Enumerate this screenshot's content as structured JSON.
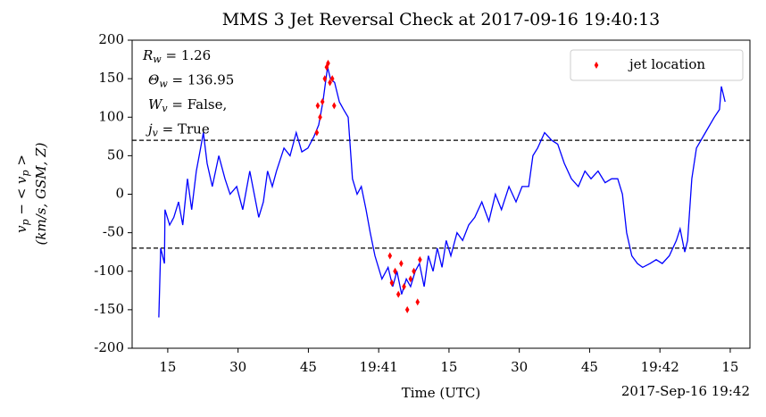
{
  "chart_data": {
    "type": "line",
    "title": "MMS 3 Jet Reversal Check at 2017-09-16 19:40:13",
    "xlabel": "Time (UTC)",
    "x_offset_label": "2017-Sep-16 19:42",
    "ylabel": {
      "line1": [
        {
          "t": "v",
          "sub": "p"
        },
        {
          "t": " − < v",
          "sub": "p"
        },
        {
          "t": " >"
        }
      ],
      "line2": "(km/s, GSM, Z)"
    },
    "annotations": [
      {
        "t": "R",
        "sub": "w",
        "rest": " = 1.26"
      },
      {
        "t": "Θ",
        "sub": "w",
        "rest": " = 136.95"
      },
      {
        "t": "W",
        "sub": "v",
        "rest": " = False,"
      },
      {
        "t": "j",
        "sub": "v",
        "rest": " = True"
      }
    ],
    "xlim": [
      7.4,
      139.2
    ],
    "ylim": [
      -200,
      200
    ],
    "xticks": [
      {
        "value": 15,
        "label": "15"
      },
      {
        "value": 30,
        "label": "30"
      },
      {
        "value": 45,
        "label": "45"
      },
      {
        "value": 60,
        "label": "19:41"
      },
      {
        "value": 75,
        "label": "15"
      },
      {
        "value": 90,
        "label": "30"
      },
      {
        "value": 105,
        "label": "45"
      },
      {
        "value": 120,
        "label": "19:42"
      },
      {
        "value": 135,
        "label": "15"
      }
    ],
    "yticks": [
      -200,
      -150,
      -100,
      -50,
      0,
      50,
      100,
      150,
      200
    ],
    "hlines": [
      70,
      -70
    ],
    "legend": "upper right",
    "series": [
      {
        "color": "#0000ff",
        "x": [
          13.1,
          13.5,
          14.3,
          14.4,
          15.4,
          16.3,
          17.3,
          18.2,
          19.2,
          20.1,
          21.1,
          22.0,
          22.6,
          23.4,
          24.5,
          25.9,
          27.2,
          28.3,
          29.7,
          31.0,
          32.5,
          34.4,
          35.4,
          36.3,
          37.3,
          38.2,
          39.8,
          41.1,
          42.4,
          43.6,
          44.9,
          46.2,
          47.2,
          48.1,
          49.1,
          49.7,
          50.6,
          51.6,
          52.5,
          53.5,
          54.4,
          55.4,
          56.3,
          57.3,
          58.2,
          59.2,
          60.7,
          62.0,
          63.0,
          63.9,
          64.9,
          65.9,
          66.8,
          67.8,
          68.7,
          69.7,
          70.6,
          71.6,
          72.5,
          73.5,
          74.4,
          75.4,
          76.7,
          77.9,
          79.2,
          80.5,
          82.0,
          83.5,
          84.9,
          86.2,
          87.8,
          89.3,
          90.6,
          92.0,
          92.9,
          93.9,
          95.4,
          96.9,
          98.2,
          99.6,
          101.1,
          102.6,
          104.0,
          105.3,
          106.8,
          108.3,
          109.7,
          111.0,
          112.0,
          112.9,
          114.0,
          115.2,
          116.3,
          117.9,
          119.2,
          120.5,
          122.0,
          123.5,
          124.3,
          125.3,
          125.9,
          126.8,
          127.8,
          129.7,
          131.6,
          132.7,
          133.1,
          133.9
        ],
        "values": [
          -160,
          -70,
          -90,
          -20,
          -40,
          -30,
          -10,
          -40,
          20,
          -20,
          30,
          60,
          80,
          40,
          10,
          50,
          20,
          0,
          10,
          -20,
          30,
          -30,
          -10,
          30,
          10,
          30,
          60,
          50,
          80,
          55,
          60,
          75,
          90,
          120,
          165,
          150,
          145,
          120,
          110,
          100,
          20,
          0,
          10,
          -20,
          -50,
          -80,
          -110,
          -95,
          -120,
          -100,
          -130,
          -110,
          -120,
          -100,
          -90,
          -120,
          -80,
          -100,
          -70,
          -95,
          -60,
          -80,
          -50,
          -60,
          -40,
          -30,
          -10,
          -35,
          0,
          -20,
          10,
          -10,
          10,
          10,
          50,
          60,
          80,
          70,
          65,
          40,
          20,
          10,
          30,
          20,
          30,
          15,
          20,
          20,
          0,
          -50,
          -80,
          -90,
          -95,
          -90,
          -85,
          -90,
          -80,
          -60,
          -45,
          -75,
          -60,
          20,
          60,
          80,
          100,
          110,
          140,
          120
        ]
      }
    ],
    "scatter": {
      "name": "jet location",
      "color": "#ff0000",
      "x": [
        46.8,
        47.0,
        47.5,
        48.0,
        48.5,
        48.9,
        49.2,
        49.6,
        50.1,
        50.5,
        62.4,
        62.8,
        63.5,
        64.2,
        64.8,
        65.4,
        66.1,
        66.8,
        67.5,
        68.3,
        68.8
      ],
      "values": [
        80,
        115,
        100,
        120,
        150,
        165,
        170,
        145,
        150,
        115,
        -80,
        -115,
        -100,
        -130,
        -90,
        -120,
        -150,
        -110,
        -100,
        -140,
        -85
      ]
    }
  }
}
